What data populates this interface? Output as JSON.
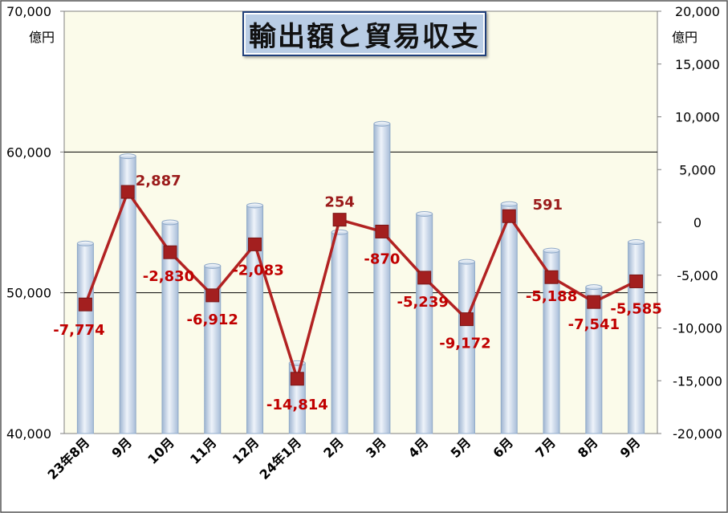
{
  "chart_data": {
    "type": "bar+line",
    "title": "輸出額と貿易収支",
    "categories": [
      "23年8月",
      "9月",
      "10月",
      "11月",
      "12月",
      "24年1月",
      "2月",
      "3月",
      "4月",
      "5月",
      "6月",
      "7月",
      "8月",
      "9月"
    ],
    "left_axis": {
      "unit": "億円",
      "ylim": [
        40000,
        70000
      ],
      "ticks": [
        "40,000",
        "50,000",
        "60,000",
        "70,000"
      ],
      "tick_values": [
        40000,
        50000,
        60000,
        70000
      ]
    },
    "right_axis": {
      "unit": "億円",
      "ylim": [
        -20000,
        20000
      ],
      "ticks": [
        "-20,000",
        "-15,000",
        "-10,000",
        "-5,000",
        "0",
        "5,000",
        "10,000",
        "15,000",
        "20,000"
      ],
      "tick_values": [
        -20000,
        -15000,
        -10000,
        -5000,
        0,
        5000,
        10000,
        15000,
        20000
      ]
    },
    "series": [
      {
        "axis": "left",
        "type": "bar",
        "values": [
          53500,
          59700,
          55000,
          51900,
          56200,
          45000,
          54300,
          62000,
          55600,
          52200,
          56300,
          53000,
          50400,
          53600
        ]
      },
      {
        "axis": "right",
        "type": "line",
        "values": [
          -7774,
          2887,
          -2830,
          -6912,
          -2083,
          -14814,
          254,
          -870,
          -5239,
          -9172,
          591,
          -5188,
          -7541,
          -5585
        ],
        "labels": [
          "-7,774",
          "2,887",
          "-2,830",
          "-6,912",
          "-2,083",
          "-14,814",
          "254",
          "-870",
          "-5,239",
          "-9,172",
          "591",
          "-5,188",
          "-7,541",
          "-5,585"
        ]
      }
    ],
    "gridlines": "horizontal",
    "colors": {
      "bar_fill": "#c6d6ea",
      "bar_edge": "#8fa9c8",
      "line": "#b22222",
      "marker": "#a31f1f",
      "label": "#c00000",
      "plot_bg": "#fbfbea",
      "title_bg": "#b9cde5",
      "title_border": "#1f3f7a"
    }
  }
}
